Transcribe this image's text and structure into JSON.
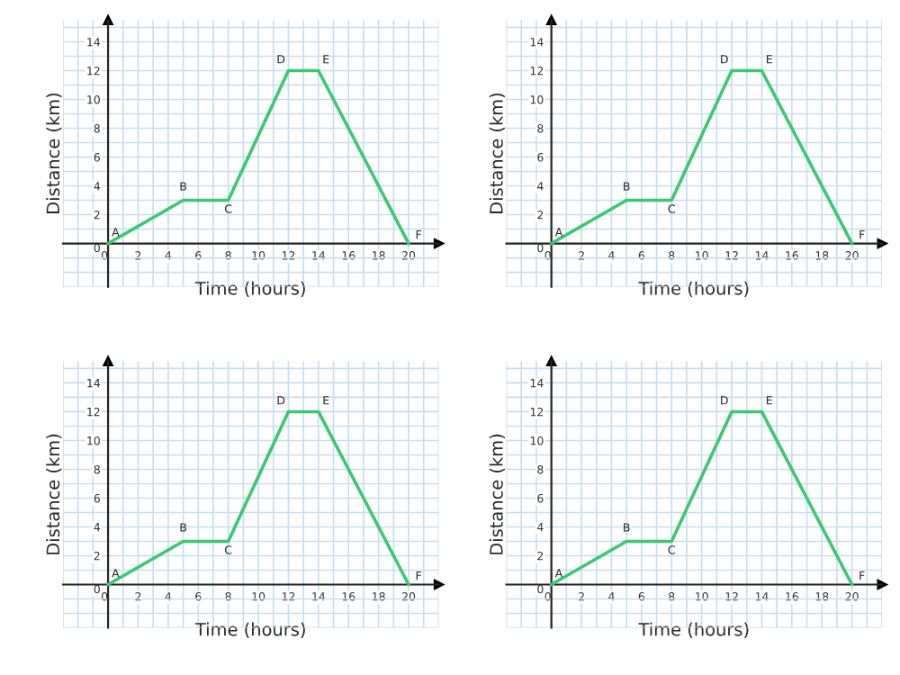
{
  "chart_data": [
    {
      "type": "line",
      "xlabel": "Time (hours)",
      "ylabel": "Distance (km)",
      "x": [
        0,
        5,
        8,
        12,
        14,
        20
      ],
      "values": [
        0,
        3,
        3,
        12,
        12,
        0
      ],
      "color": "#3cc873",
      "xlim": [
        -3,
        22
      ],
      "ylim": [
        -3,
        15.5
      ],
      "xticks": [
        0,
        2,
        4,
        6,
        8,
        10,
        12,
        14,
        16,
        18,
        20
      ],
      "yticks": [
        0,
        2,
        4,
        6,
        8,
        10,
        12,
        14
      ],
      "grid": true,
      "marker": "none",
      "line_style": "solid",
      "annotations": [
        {
          "text": "A",
          "x": 0,
          "y": 0
        },
        {
          "text": "B",
          "x": 5,
          "y": 3
        },
        {
          "text": "C",
          "x": 8,
          "y": 3
        },
        {
          "text": "D",
          "x": 12,
          "y": 12
        },
        {
          "text": "E",
          "x": 14,
          "y": 12
        },
        {
          "text": "F",
          "x": 20,
          "y": 0
        }
      ]
    },
    {
      "type": "line",
      "xlabel": "Time (hours)",
      "ylabel": "Distance (km)",
      "x": [
        0,
        5,
        8,
        12,
        14,
        20
      ],
      "values": [
        0,
        3,
        3,
        12,
        12,
        0
      ],
      "color": "#3cc873",
      "xlim": [
        -3,
        22
      ],
      "ylim": [
        -3,
        15.5
      ],
      "xticks": [
        0,
        2,
        4,
        6,
        8,
        10,
        12,
        14,
        16,
        18,
        20
      ],
      "yticks": [
        0,
        2,
        4,
        6,
        8,
        10,
        12,
        14
      ],
      "grid": true,
      "marker": "none",
      "line_style": "solid",
      "annotations": [
        {
          "text": "A",
          "x": 0,
          "y": 0
        },
        {
          "text": "B",
          "x": 5,
          "y": 3
        },
        {
          "text": "C",
          "x": 8,
          "y": 3
        },
        {
          "text": "D",
          "x": 12,
          "y": 12
        },
        {
          "text": "E",
          "x": 14,
          "y": 12
        },
        {
          "text": "F",
          "x": 20,
          "y": 0
        }
      ]
    },
    {
      "type": "line",
      "xlabel": "Time (hours)",
      "ylabel": "Distance (km)",
      "x": [
        0,
        5,
        8,
        12,
        14,
        20
      ],
      "values": [
        0,
        3,
        3,
        12,
        12,
        0
      ],
      "color": "#3cc873",
      "xlim": [
        -3,
        22
      ],
      "ylim": [
        -3,
        15.5
      ],
      "xticks": [
        0,
        2,
        4,
        6,
        8,
        10,
        12,
        14,
        16,
        18,
        20
      ],
      "yticks": [
        0,
        2,
        4,
        6,
        8,
        10,
        12,
        14
      ],
      "grid": true,
      "marker": "none",
      "line_style": "solid",
      "annotations": [
        {
          "text": "A",
          "x": 0,
          "y": 0
        },
        {
          "text": "B",
          "x": 5,
          "y": 3
        },
        {
          "text": "C",
          "x": 8,
          "y": 3
        },
        {
          "text": "D",
          "x": 12,
          "y": 12
        },
        {
          "text": "E",
          "x": 14,
          "y": 12
        },
        {
          "text": "F",
          "x": 20,
          "y": 0
        }
      ]
    },
    {
      "type": "line",
      "xlabel": "Time (hours)",
      "ylabel": "Distance (km)",
      "x": [
        0,
        5,
        8,
        12,
        14,
        20
      ],
      "values": [
        0,
        3,
        3,
        12,
        12,
        0
      ],
      "color": "#3cc873",
      "xlim": [
        -3,
        22
      ],
      "ylim": [
        -3,
        15.5
      ],
      "xticks": [
        0,
        2,
        4,
        6,
        8,
        10,
        12,
        14,
        16,
        18,
        20
      ],
      "yticks": [
        0,
        2,
        4,
        6,
        8,
        10,
        12,
        14
      ],
      "grid": true,
      "marker": "none",
      "line_style": "solid",
      "annotations": [
        {
          "text": "A",
          "x": 0,
          "y": 0
        },
        {
          "text": "B",
          "x": 5,
          "y": 3
        },
        {
          "text": "C",
          "x": 8,
          "y": 3
        },
        {
          "text": "D",
          "x": 12,
          "y": 12
        },
        {
          "text": "E",
          "x": 14,
          "y": 12
        },
        {
          "text": "F",
          "x": 20,
          "y": 0
        }
      ]
    }
  ]
}
